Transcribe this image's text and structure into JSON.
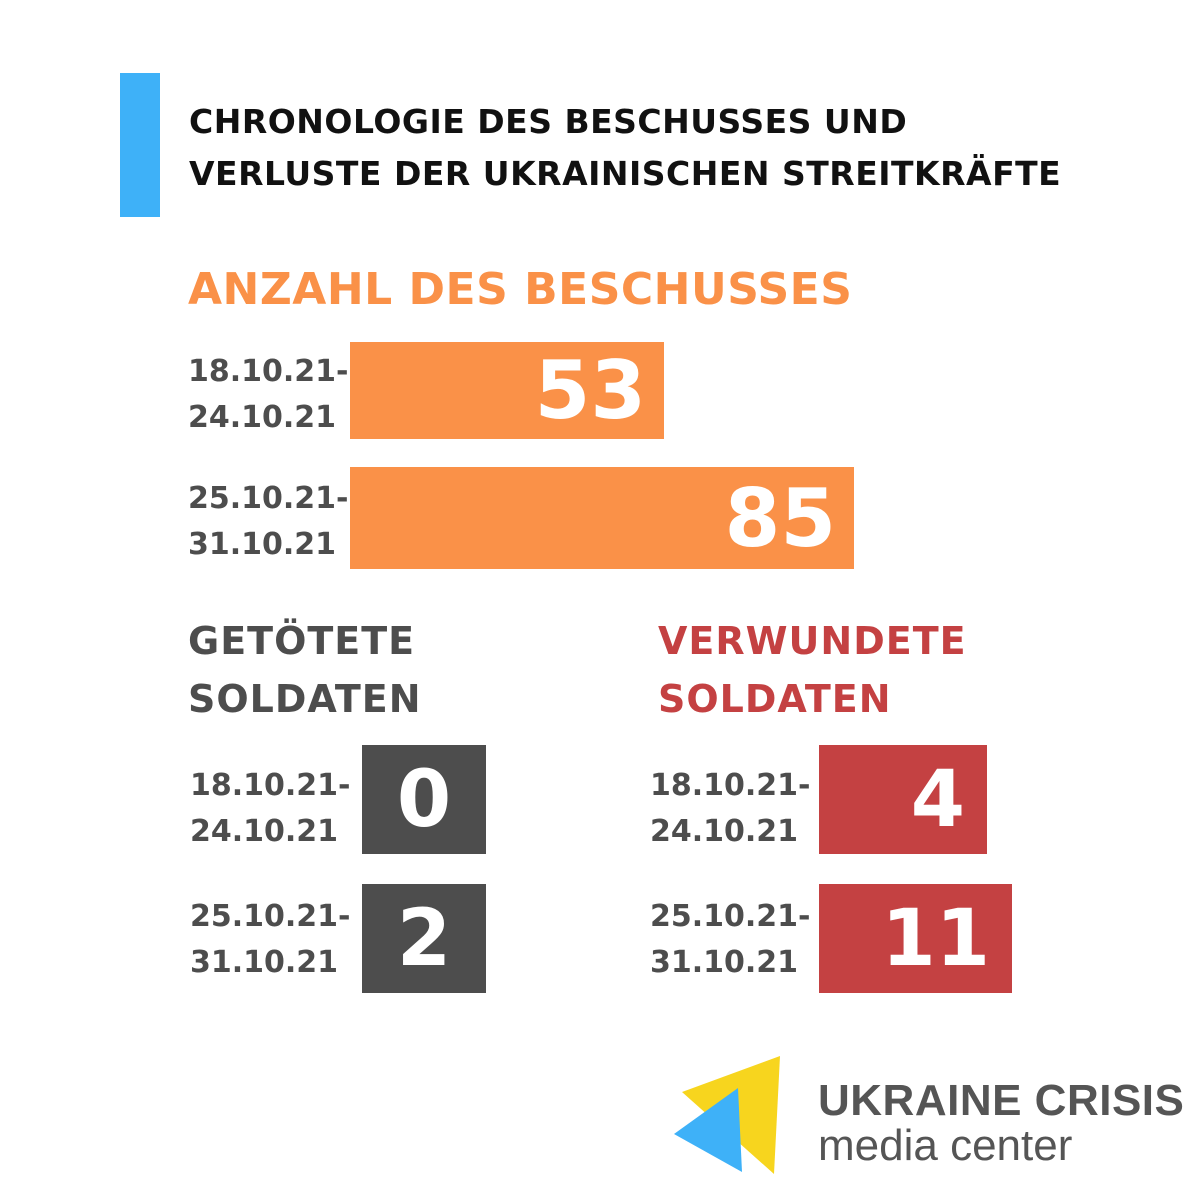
{
  "title": {
    "line1": "CHRONOLOGIE DES BESCHUSSES UND",
    "line2": "VERLUSTE DER UKRAINISCHEN STREITKRÄFTE"
  },
  "colors": {
    "accent_blue": "#3eb1f8",
    "shelling_orange": "#fa9148",
    "killed_gray": "#4d4d4d",
    "wounded_red": "#c44142",
    "logo_yellow": "#f7d51e",
    "logo_blue": "#3eb1f8"
  },
  "chart_data": [
    {
      "type": "bar",
      "orientation": "horizontal",
      "title": "ANZAHL DES BESCHUSSES",
      "categories": [
        [
          "18.10.21-",
          "24.10.21"
        ],
        [
          "25.10.21-",
          "31.10.21"
        ]
      ],
      "values": [
        53,
        85
      ],
      "color": "#fa9148"
    },
    {
      "type": "bar",
      "orientation": "horizontal",
      "title": [
        "GETÖTETE",
        "SOLDATEN"
      ],
      "categories": [
        [
          "18.10.21-",
          "24.10.21"
        ],
        [
          "25.10.21-",
          "31.10.21"
        ]
      ],
      "values": [
        0,
        2
      ],
      "color": "#4d4d4d"
    },
    {
      "type": "bar",
      "orientation": "horizontal",
      "title": [
        "VERWUNDETE",
        "SOLDATEN"
      ],
      "categories": [
        [
          "18.10.21-",
          "24.10.21"
        ],
        [
          "25.10.21-",
          "31.10.21"
        ]
      ],
      "values": [
        4,
        11
      ],
      "color": "#c44142"
    }
  ],
  "logo": {
    "line1": "UKRAINE CRISIS",
    "line2": "media center",
    "icon": "ucmc-triangles-logo"
  }
}
